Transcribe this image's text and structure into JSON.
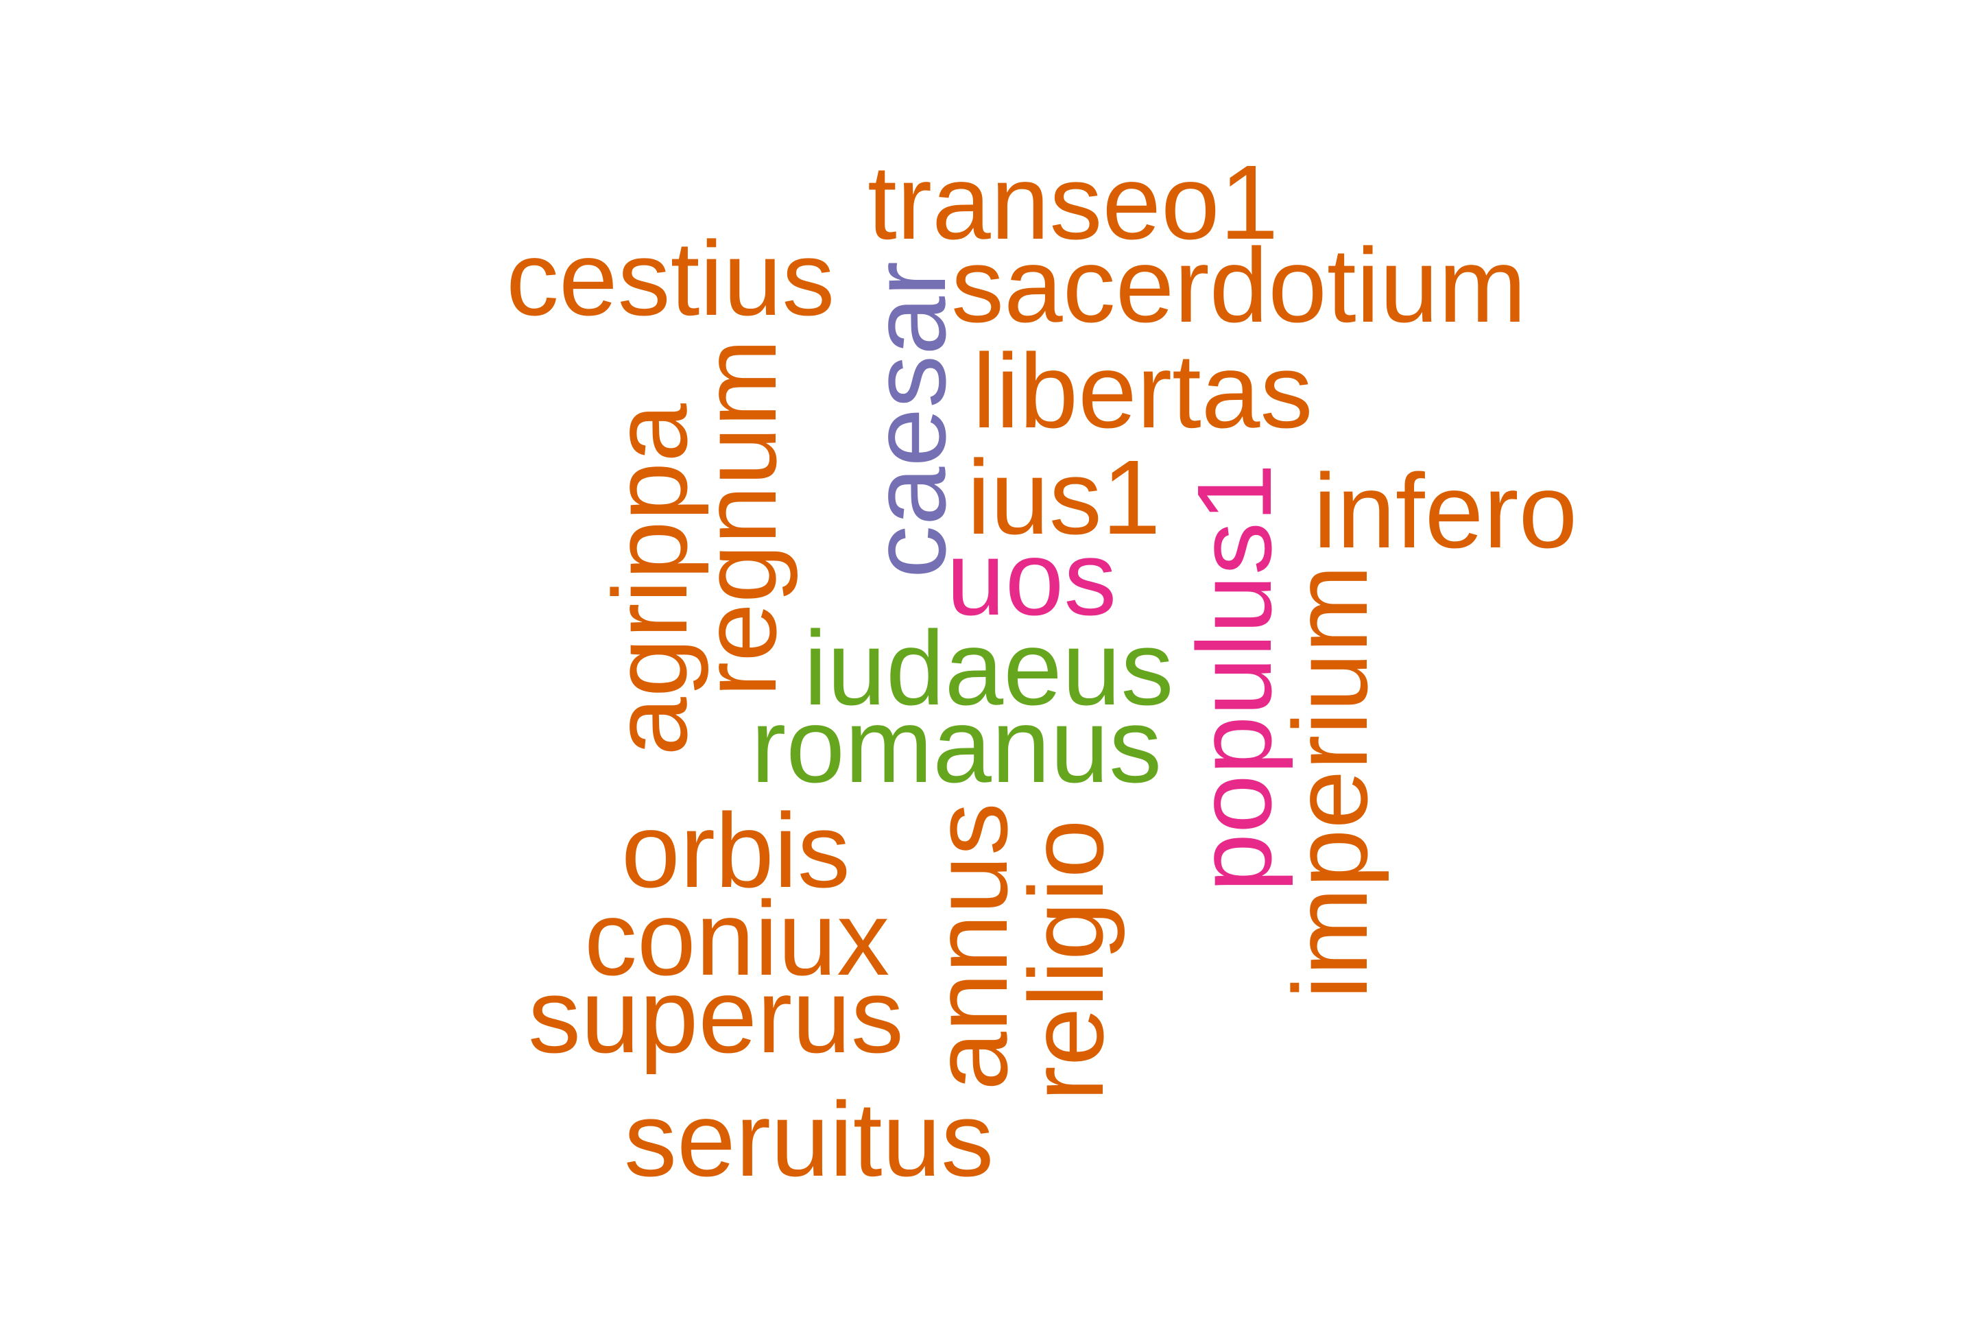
{
  "colors": {
    "orange": "#D95F02",
    "purple": "#7570B3",
    "pink": "#E7298A",
    "green": "#66A61E"
  },
  "words": {
    "transeo1": {
      "text": "transeo1",
      "color": "#D95F02"
    },
    "cestius": {
      "text": "cestius",
      "color": "#D95F02"
    },
    "sacerdotium": {
      "text": "sacerdotium",
      "color": "#D95F02"
    },
    "caesar": {
      "text": "caesar",
      "color": "#7570B3"
    },
    "libertas": {
      "text": "libertas",
      "color": "#D95F02"
    },
    "regnum": {
      "text": "regnum",
      "color": "#D95F02"
    },
    "agrippa": {
      "text": "agrippa",
      "color": "#D95F02"
    },
    "ius1": {
      "text": "ius1",
      "color": "#D95F02"
    },
    "infero": {
      "text": "infero",
      "color": "#D95F02"
    },
    "populus1": {
      "text": "populus1",
      "color": "#E7298A"
    },
    "uos": {
      "text": "uos",
      "color": "#E7298A"
    },
    "iudaeus": {
      "text": "iudaeus",
      "color": "#66A61E"
    },
    "imperium": {
      "text": "imperium",
      "color": "#D95F02"
    },
    "romanus": {
      "text": "romanus",
      "color": "#66A61E"
    },
    "orbis": {
      "text": "orbis",
      "color": "#D95F02"
    },
    "annus": {
      "text": "annus",
      "color": "#D95F02"
    },
    "religio": {
      "text": "religio",
      "color": "#D95F02"
    },
    "coniux": {
      "text": "coniux",
      "color": "#D95F02"
    },
    "superus": {
      "text": "superus",
      "color": "#D95F02"
    },
    "seruitus": {
      "text": "seruitus",
      "color": "#D95F02"
    }
  }
}
